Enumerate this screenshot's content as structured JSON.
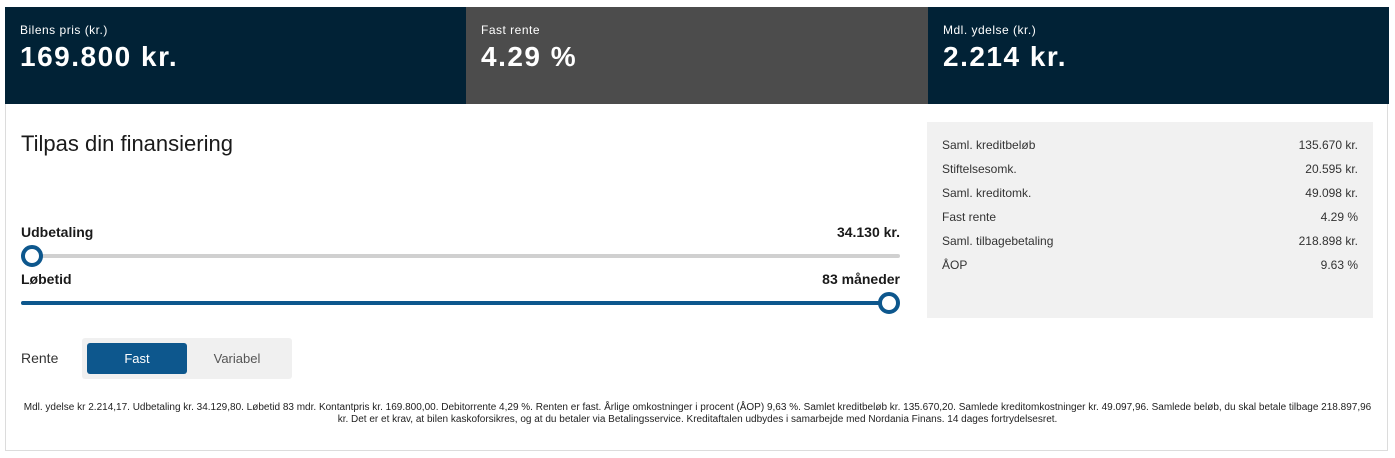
{
  "header": {
    "price": {
      "label": "Bilens pris (kr.)",
      "value": "169.800 kr."
    },
    "rate": {
      "label": "Fast rente",
      "value": "4.29 %"
    },
    "payment": {
      "label": "Mdl. ydelse (kr.)",
      "value": "2.214 kr."
    }
  },
  "main": {
    "title": "Tilpas din finansiering",
    "downpayment": {
      "label": "Udbetaling",
      "value": "34.130 kr.",
      "fill_fraction": 0.0
    },
    "term": {
      "label": "Løbetid",
      "value": "83 måneder",
      "fill_fraction": 1.0
    },
    "rente": {
      "label": "Rente",
      "options": [
        {
          "label": "Fast",
          "active": true
        },
        {
          "label": "Variabel",
          "active": false
        }
      ]
    }
  },
  "summary": {
    "rows": [
      {
        "label": "Saml. kreditbeløb",
        "value": "135.670 kr."
      },
      {
        "label": "Stiftelsesomk.",
        "value": "20.595 kr."
      },
      {
        "label": "Saml. kreditomk.",
        "value": "49.098 kr."
      },
      {
        "label": "Fast rente",
        "value": "4.29 %"
      },
      {
        "label": "Saml. tilbagebetaling",
        "value": "218.898 kr."
      },
      {
        "label": "ÅOP",
        "value": "9.63 %"
      }
    ]
  },
  "disclaimer": "Mdl. ydelse kr 2.214,17. Udbetaling kr. 34.129,80. Løbetid 83 mdr. Kontantpris kr. 169.800,00. Debitorrente 4,29 %. Renten er fast. Årlige omkostninger i procent (ÅOP) 9,63 %. Samlet kreditbeløb kr. 135.670,20. Samlede kreditomkostninger kr. 49.097,96. Samlede beløb, du skal betale tilbage 218.897,96 kr. Det er et krav, at bilen kaskoforsikres, og at du betaler via Betalingsservice. Kreditaftalen udbydes i samarbejde med Nordania Finans. 14 dages fortrydelsesret.",
  "colors": {
    "navy": "#012236",
    "grey": "#4c4c4c",
    "accent": "#0d578d"
  }
}
